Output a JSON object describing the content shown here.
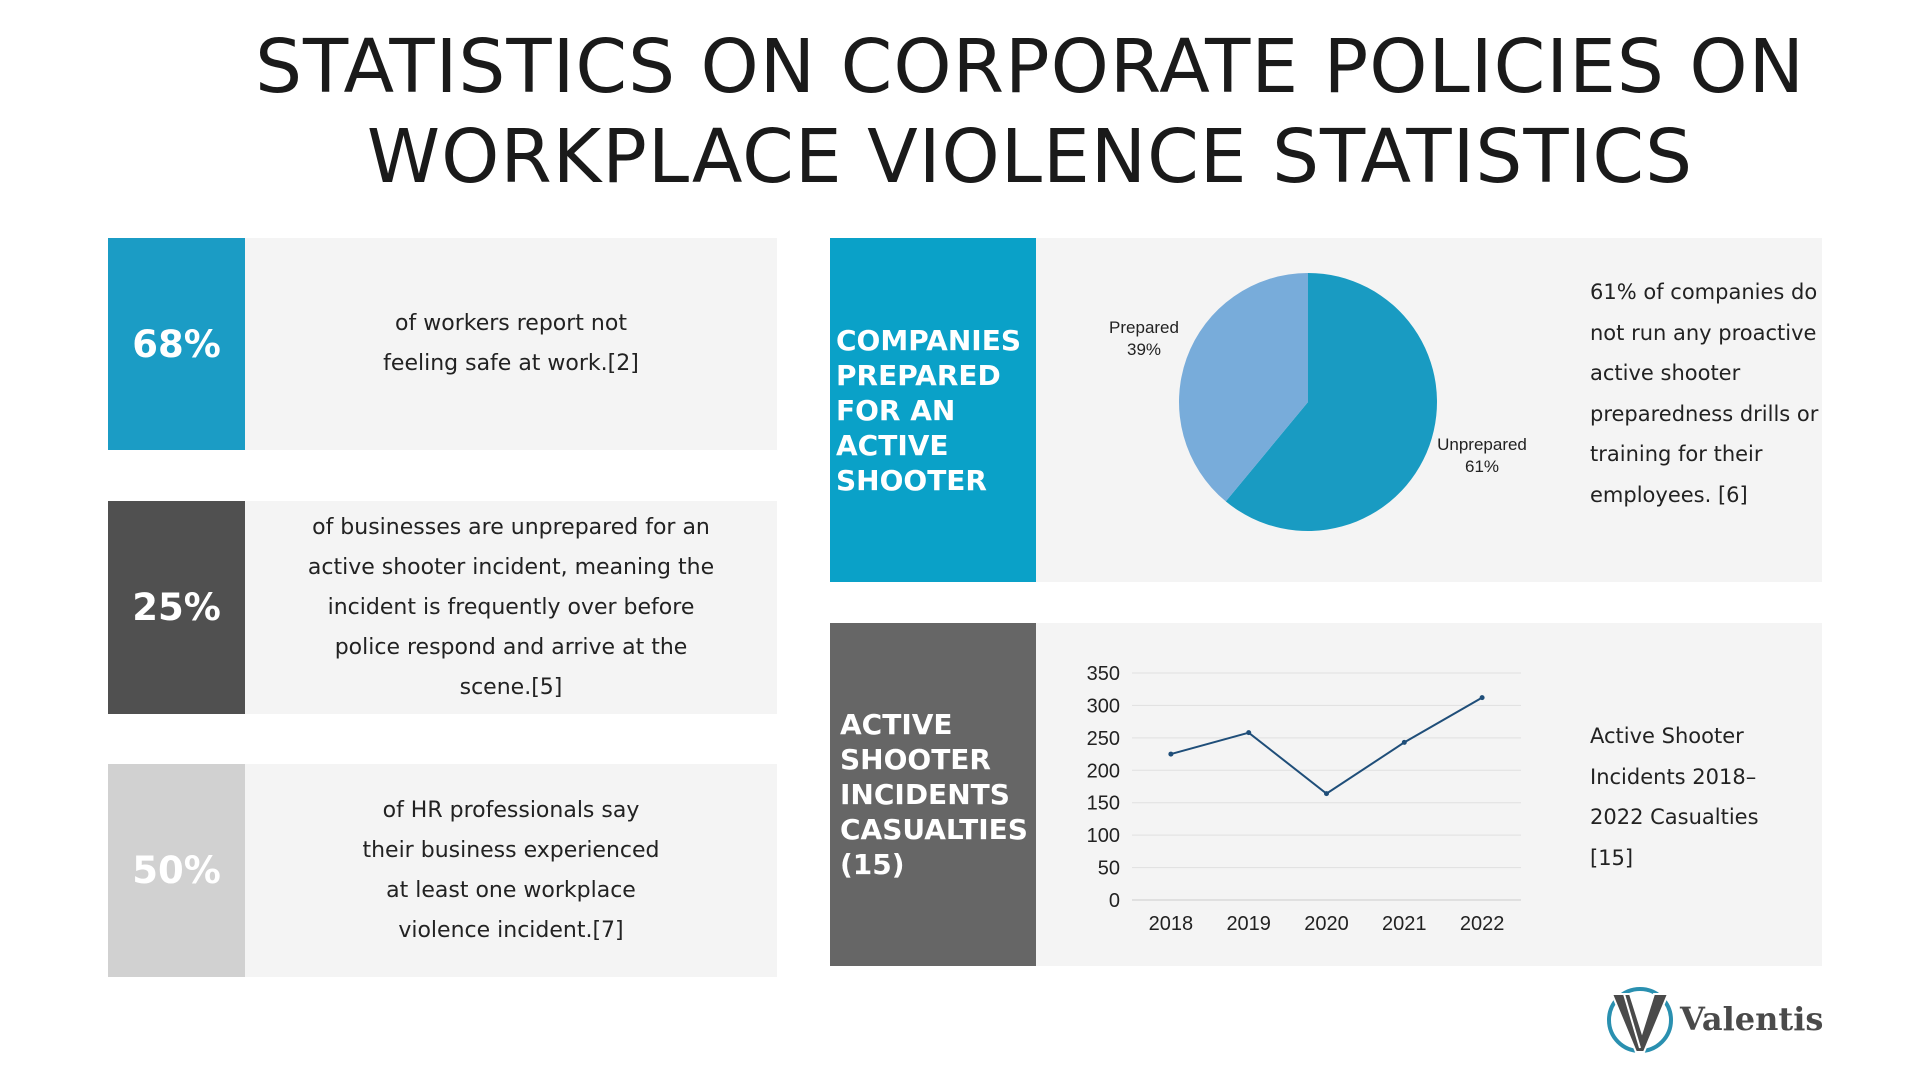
{
  "title": {
    "line1": "STATISTICS ON CORPORATE POLICIES ON",
    "line2": "WORKPLACE VIOLENCE STATISTICS"
  },
  "stats": [
    {
      "value": "68%",
      "text": "of workers report not\nfeeling safe at work.[2]",
      "color": "#1b9cc5"
    },
    {
      "value": "25%",
      "text": "of businesses are unprepared for an\nactive shooter incident, meaning the\nincident is frequently over before\npolice respond and arrive at the\nscene.[5]",
      "color": "#505050"
    },
    {
      "value": "50%",
      "text": "of HR professionals say\ntheir business experienced\nat least one workplace\nviolence incident.[7]",
      "color": "#d1d1d1"
    }
  ],
  "pie_panel": {
    "heading": "COMPANIES PREPARED FOR AN ACTIVE SHOOTER",
    "color": "#0aa1c8",
    "note": "61% of companies do\nnot run any proactive\nactive shooter\npreparedness drills or\ntraining for their\nemployees. [6]"
  },
  "line_panel": {
    "heading": "ACTIVE SHOOTER INCIDENTS CASUALTIES (15)",
    "color": "#666666",
    "note": "Active Shooter\nIncidents 2018–\n2022 Casualties\n[15]"
  },
  "chart_data": [
    {
      "type": "pie",
      "slices": [
        {
          "label": "Unprepared",
          "value": 61,
          "display": "61%",
          "color": "#199bc2"
        },
        {
          "label": "Prepared",
          "value": 39,
          "display": "39%",
          "color": "#78acda"
        }
      ]
    },
    {
      "type": "line",
      "categories": [
        "2018",
        "2019",
        "2020",
        "2021",
        "2022"
      ],
      "series": [
        {
          "values": [
            225,
            258,
            164,
            243,
            312
          ],
          "color": "#1f4e79"
        }
      ],
      "ylim": [
        0,
        350
      ],
      "yticks": [
        "0",
        "50",
        "100",
        "150",
        "200",
        "250",
        "300",
        "350"
      ],
      "grid": true
    }
  ],
  "logo": {
    "text": "Valentis",
    "ring_color": "#2a90b0"
  }
}
